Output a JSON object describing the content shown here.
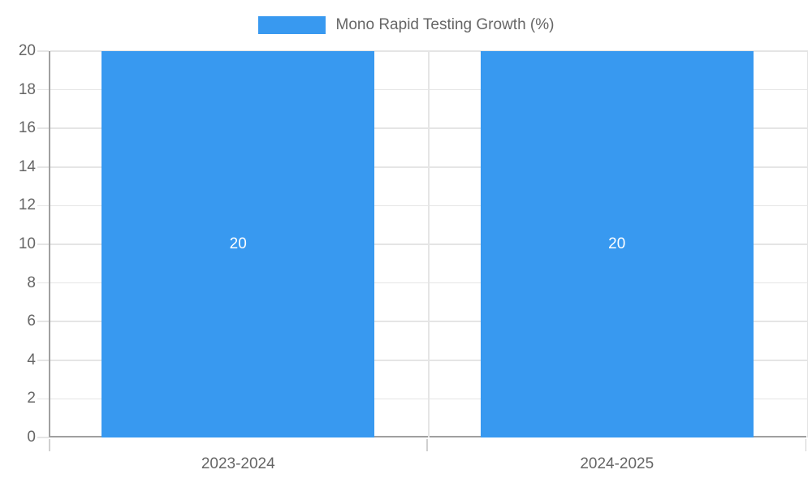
{
  "chart_data": {
    "type": "bar",
    "title": "",
    "categories": [
      "2023-2024",
      "2024-2025"
    ],
    "series": [
      {
        "name": "Mono Rapid Testing Growth (%)",
        "values": [
          20,
          20
        ],
        "value_labels": [
          "20",
          "20"
        ],
        "color": "#3899F0"
      }
    ],
    "xlabel": "",
    "ylabel": "",
    "ylim": [
      0,
      20
    ],
    "yticks": [
      0,
      2,
      4,
      6,
      8,
      10,
      12,
      14,
      16,
      18,
      20
    ],
    "grid": true,
    "legend_position": "top"
  },
  "colors": {
    "bar_fill": "#3899F0",
    "axis_line": "#A0A0A0",
    "grid_line": "#E5E5E5",
    "outer_tick": "#D0D0D0",
    "tick_text": "#666666",
    "legend_text": "#666666",
    "value_label_text": "#FFFFFF",
    "background": "#FFFFFF"
  }
}
